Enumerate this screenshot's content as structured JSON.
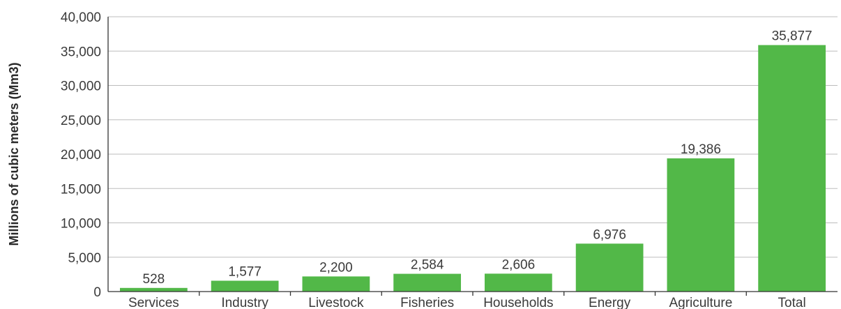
{
  "chart_data": {
    "type": "bar",
    "title": "",
    "xlabel": "",
    "ylabel": "Millions of cubic meters (Mm3)",
    "ylim": [
      0,
      40000
    ],
    "yticks": [
      0,
      5000,
      10000,
      15000,
      20000,
      25000,
      30000,
      35000,
      40000
    ],
    "ytick_labels": [
      "0",
      "5,000",
      "10,000",
      "15,000",
      "20,000",
      "25,000",
      "30,000",
      "35,000",
      "40,000"
    ],
    "categories": [
      "Services",
      "Industry",
      "Livestock",
      "Fisheries",
      "Households",
      "Energy",
      "Agriculture",
      "Total"
    ],
    "values": [
      528,
      1577,
      2200,
      2584,
      2606,
      6976,
      19386,
      35877
    ],
    "value_labels": [
      "528",
      "1,577",
      "2,200",
      "2,584",
      "2,606",
      "6,976",
      "19,386",
      "35,877"
    ],
    "bar_color": "#52b848",
    "grid": true,
    "legend": "none"
  }
}
